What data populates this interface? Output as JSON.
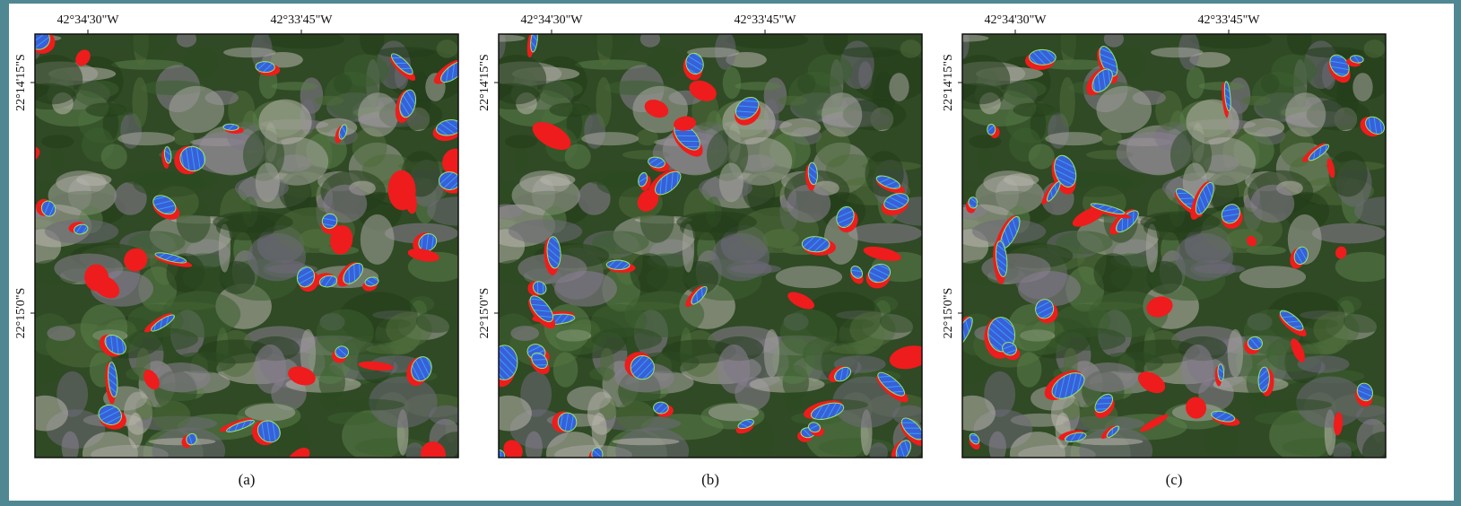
{
  "panels": [
    {
      "caption": "(a)",
      "x_labels": [
        "42°34'30\"W",
        "42°33'45\"W"
      ],
      "y_labels": [
        "22°14'15\"S",
        "22°15'0\"S"
      ]
    },
    {
      "caption": "(b)",
      "x_labels": [
        "42°34'30\"W",
        "42°33'45\"W"
      ],
      "y_labels": [
        "22°14'15\"S",
        "22°15'0\"S"
      ]
    },
    {
      "caption": "(c)",
      "x_labels": [
        "42°34'30\"W",
        "42°33'45\"W"
      ],
      "y_labels": [
        "22°14'15\"S",
        "22°15'0\"S"
      ]
    }
  ]
}
